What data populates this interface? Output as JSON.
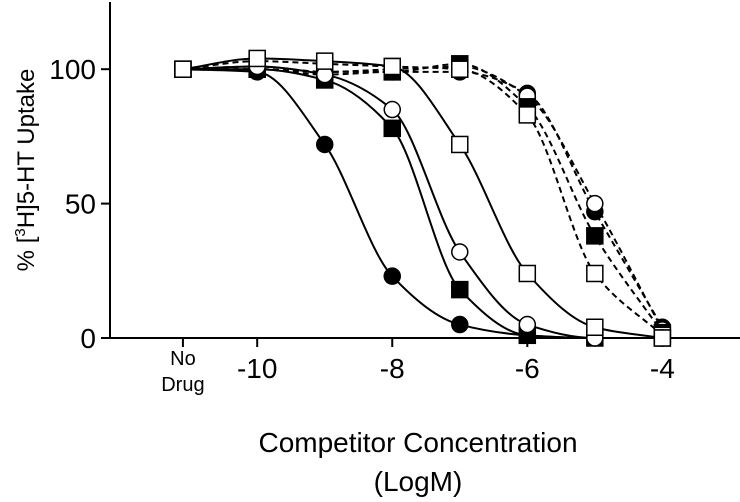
{
  "chart_data": {
    "type": "line",
    "ylabel": "% [3H]5-HT Uptake",
    "xlabel": [
      "Competitor Concentration",
      "(LogM)"
    ],
    "xlim": [
      -12.18,
      -2.85
    ],
    "ylim": [
      0,
      125
    ],
    "xticks": [
      {
        "value": -11.1,
        "label": "No Drug"
      },
      -10,
      -8,
      -6,
      -4
    ],
    "yticks": [
      0,
      50,
      100
    ],
    "x": [
      -11.1,
      -10,
      -9,
      -8,
      -7,
      -6,
      -5,
      -4
    ],
    "series": [
      {
        "color": "#000000",
        "marker": "circle",
        "filled": true,
        "dashed": true,
        "values": [
          100,
          100,
          98,
          99,
          99,
          91,
          47,
          4
        ]
      },
      {
        "color": "#000000",
        "marker": "circle",
        "filled": false,
        "dashed": true,
        "values": [
          100,
          101,
          99,
          100,
          101,
          90,
          50,
          3
        ]
      },
      {
        "color": "#000000",
        "marker": "square",
        "filled": true,
        "dashed": true,
        "values": [
          100,
          100,
          99,
          99,
          102,
          86,
          38,
          2
        ]
      },
      {
        "color": "#000000",
        "marker": "square",
        "filled": false,
        "dashed": true,
        "values": [
          100,
          103,
          102,
          101,
          100,
          83,
          24,
          1
        ]
      },
      {
        "color": "#000000",
        "marker": "circle",
        "filled": true,
        "dashed": false,
        "values": [
          100,
          99,
          72,
          23,
          5,
          1,
          0,
          0
        ]
      },
      {
        "color": "#000000",
        "marker": "square",
        "filled": true,
        "dashed": false,
        "values": [
          100,
          100,
          96,
          78,
          18,
          1,
          0,
          0
        ]
      },
      {
        "color": "#000000",
        "marker": "circle",
        "filled": false,
        "dashed": false,
        "values": [
          100,
          101,
          98,
          85,
          32,
          5,
          0,
          0
        ]
      },
      {
        "color": "#000000",
        "marker": "square",
        "filled": false,
        "dashed": false,
        "values": [
          100,
          104,
          103,
          101,
          72,
          24,
          4,
          0
        ]
      }
    ]
  }
}
